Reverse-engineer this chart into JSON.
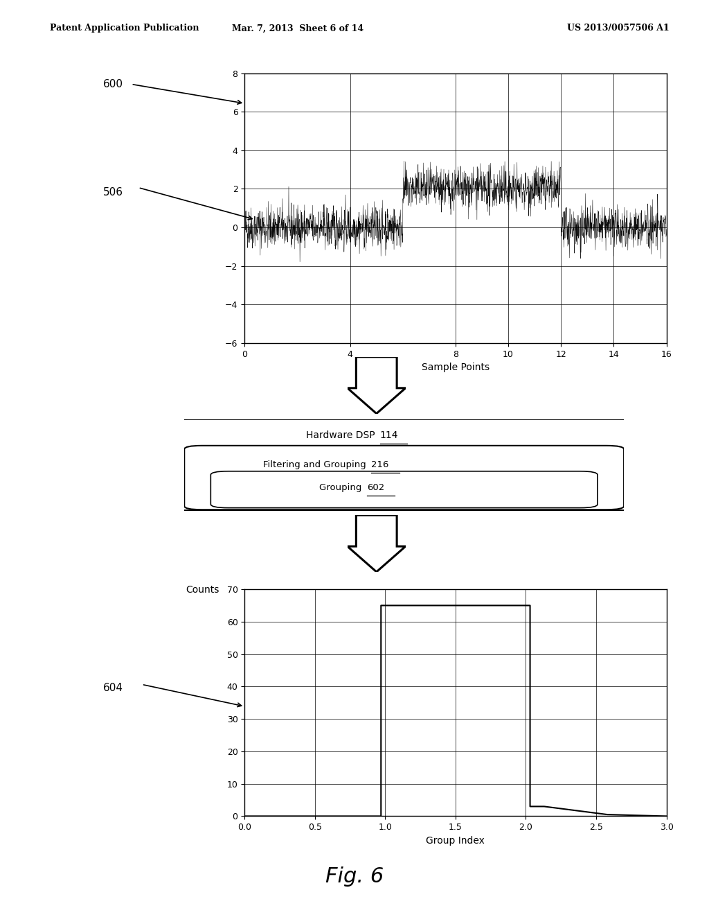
{
  "bg_color": "#ffffff",
  "header_left": "Patent Application Publication",
  "header_center": "Mar. 7, 2013  Sheet 6 of 14",
  "header_right": "US 2013/0057506 A1",
  "fig_label": "Fig. 6",
  "label_600": "600",
  "label_506": "506",
  "label_604": "604",
  "top_plot": {
    "xlabel": "Sample Points",
    "xlim": [
      0,
      16
    ],
    "ylim": [
      -6,
      8
    ],
    "xticks": [
      0,
      4,
      8,
      10,
      12,
      14,
      16
    ],
    "yticks": [
      -6,
      -4,
      -2,
      0,
      2,
      4,
      6,
      8
    ]
  },
  "bottom_plot": {
    "xlabel": "Group Index",
    "ylabel": "Counts",
    "xlim": [
      0,
      3
    ],
    "ylim": [
      0,
      70
    ],
    "xticks": [
      0,
      0.5,
      1.0,
      1.5,
      2.0,
      2.5,
      3.0
    ],
    "yticks": [
      0,
      10,
      20,
      30,
      40,
      50,
      60,
      70
    ]
  },
  "dsp_box": {
    "outer_text": "Hardware DSP ",
    "outer_ref": "114",
    "middle_text": "Filtering and Grouping ",
    "middle_ref": "216",
    "inner_text": "Grouping ",
    "inner_ref": "602"
  },
  "arrow_shape_x": [
    0.15,
    0.85,
    0.85,
    1.0,
    0.5,
    0.0,
    0.15
  ],
  "arrow_shape_y": [
    1.0,
    1.0,
    0.45,
    0.45,
    0.0,
    0.45,
    0.45
  ]
}
